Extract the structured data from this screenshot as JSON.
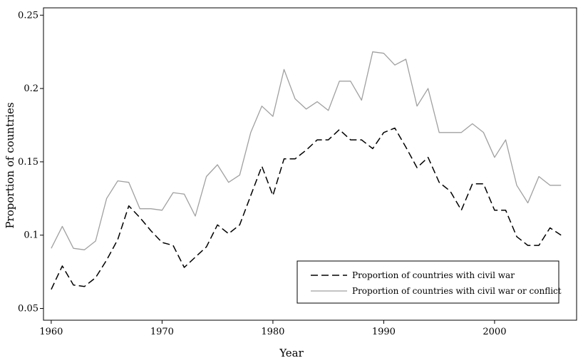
{
  "chart_data": {
    "type": "line",
    "xlabel": "Year",
    "ylabel": "Proportion of countries",
    "xlim": [
      1959.3,
      2007.4
    ],
    "ylim": [
      0.042,
      0.255
    ],
    "xticks": [
      1960,
      1970,
      1980,
      1990,
      2000
    ],
    "xtick_labels": [
      "1960",
      "1970",
      "1980",
      "1990",
      "2000"
    ],
    "yticks": [
      0.05,
      0.1,
      0.15,
      0.2,
      0.25
    ],
    "ytick_labels": [
      "0.05",
      "0.1",
      "0.15",
      "0.2",
      "0.25"
    ],
    "grid": false,
    "legend_position": "bottom-right",
    "x": [
      1960,
      1961,
      1962,
      1963,
      1964,
      1965,
      1966,
      1967,
      1968,
      1969,
      1970,
      1971,
      1972,
      1973,
      1974,
      1975,
      1976,
      1977,
      1978,
      1979,
      1980,
      1981,
      1982,
      1983,
      1984,
      1985,
      1986,
      1987,
      1988,
      1989,
      1990,
      1991,
      1992,
      1993,
      1994,
      1995,
      1996,
      1997,
      1998,
      1999,
      2000,
      2001,
      2002,
      2003,
      2004,
      2005,
      2006
    ],
    "series": [
      {
        "name": "Proportion of countries with civil war",
        "color": "#000000",
        "style": "dashed",
        "values": [
          0.063,
          0.079,
          0.066,
          0.065,
          0.071,
          0.083,
          0.097,
          0.12,
          0.112,
          0.103,
          0.095,
          0.093,
          0.078,
          0.085,
          0.092,
          0.107,
          0.101,
          0.107,
          0.127,
          0.147,
          0.127,
          0.152,
          0.152,
          0.158,
          0.165,
          0.165,
          0.172,
          0.165,
          0.165,
          0.159,
          0.17,
          0.173,
          0.16,
          0.146,
          0.153,
          0.136,
          0.13,
          0.117,
          0.135,
          0.135,
          0.117,
          0.117,
          0.099,
          0.093,
          0.093,
          0.105,
          0.1
        ]
      },
      {
        "name": "Proportion of countries with civil war or conflict",
        "color": "#a0a0a0",
        "style": "solid",
        "values": [
          0.091,
          0.106,
          0.091,
          0.09,
          0.096,
          0.125,
          0.137,
          0.136,
          0.118,
          0.118,
          0.117,
          0.129,
          0.128,
          0.113,
          0.14,
          0.148,
          0.136,
          0.141,
          0.17,
          0.188,
          0.181,
          0.213,
          0.193,
          0.186,
          0.191,
          0.185,
          0.205,
          0.205,
          0.192,
          0.225,
          0.224,
          0.216,
          0.22,
          0.188,
          0.2,
          0.17,
          0.17,
          0.17,
          0.176,
          0.17,
          0.153,
          0.165,
          0.134,
          0.122,
          0.14,
          0.134,
          0.134
        ]
      }
    ]
  }
}
